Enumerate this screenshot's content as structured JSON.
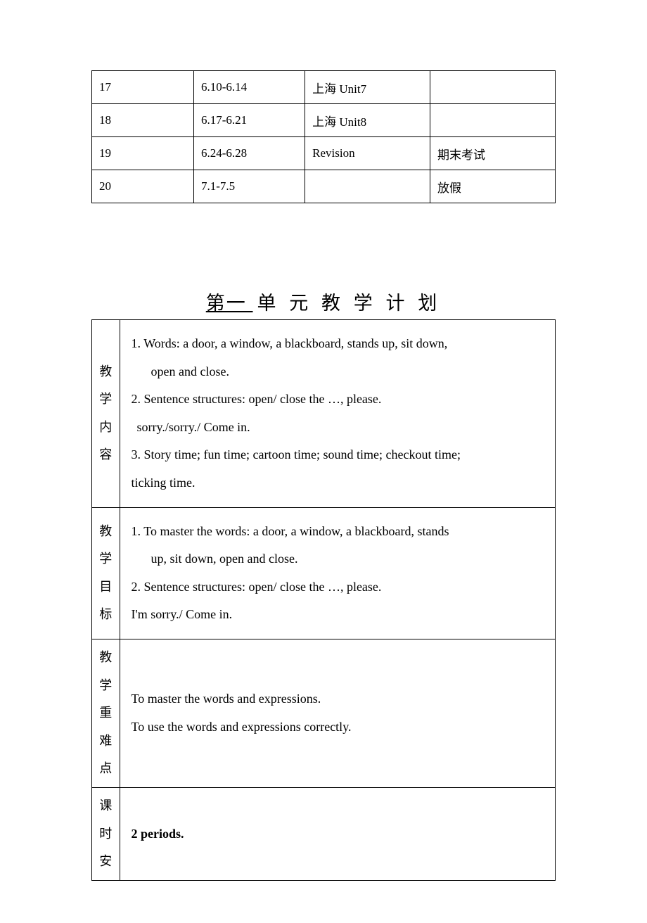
{
  "topTable": {
    "rows": [
      {
        "c1": "17",
        "c2": "6.10-6.14",
        "c3": "上海 Unit7",
        "c4": ""
      },
      {
        "c1": "18",
        "c2": "6.17-6.21",
        "c3": "上海 Unit8",
        "c4": ""
      },
      {
        "c1": "19",
        "c2": "6.24-6.28",
        "c3": "Revision",
        "c4": "期末考试"
      },
      {
        "c1": "20",
        "c2": "7.1-7.5",
        "c3": "",
        "c4": "放假"
      }
    ]
  },
  "sectionTitle": {
    "underlined": "第一  ",
    "rest": "单 元 教 学 计 划"
  },
  "planTable": {
    "rows": [
      {
        "label": "教\n学\n内\n容",
        "lines": [
          "1.  Words: a door, a window, a blackboard, stands up, sit down,",
          "open and close.",
          "2.  Sentence structures: open/ close the …, please.",
          " sorry./sorry./ Come in.",
          "3. Story time; fun time; cartoon time; sound time; checkout time;",
          "ticking time."
        ],
        "indents": [
          0,
          2,
          0,
          1,
          0,
          0
        ]
      },
      {
        "label": "教\n学\n目\n标",
        "lines": [
          "1.  To master the words: a door, a window, a blackboard, stands",
          "up, sit down, open and close.",
          "2.  Sentence structures: open/ close the …, please.",
          "I'm sorry./ Come in."
        ],
        "indents": [
          0,
          2,
          0,
          0
        ]
      },
      {
        "label": "教\n学\n重\n难\n点",
        "lines": [
          "To master the words and expressions.",
          "To use the words and expressions correctly."
        ],
        "indents": [
          0,
          0
        ]
      },
      {
        "label": "课\n时\n安",
        "lines": [
          "2 periods."
        ],
        "indents": [
          0
        ],
        "bold": true
      }
    ]
  }
}
